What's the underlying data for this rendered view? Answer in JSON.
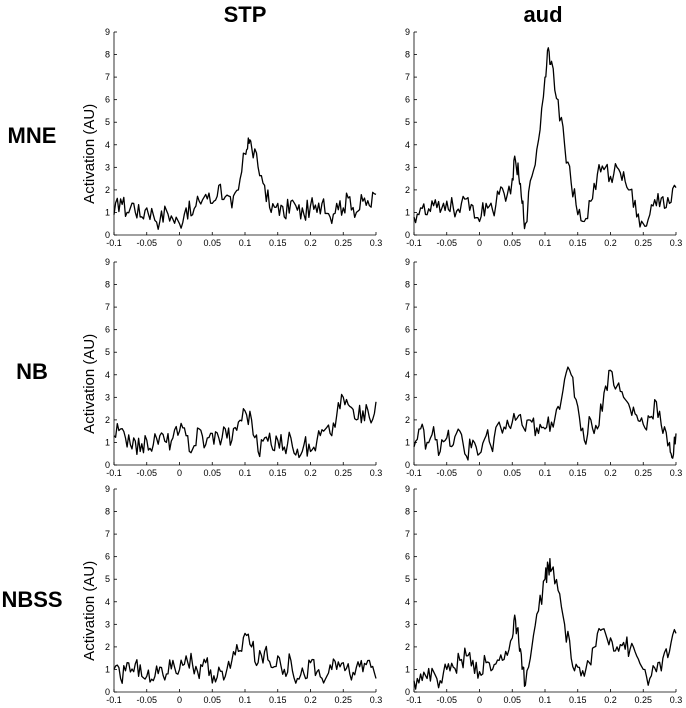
{
  "columns": [
    "STP",
    "aud"
  ],
  "rows": [
    "MNE",
    "NB",
    "NBSS"
  ],
  "chart_data": [
    {
      "type": "line",
      "row": "MNE",
      "column": "STP",
      "ylabel": "Activation (AU)",
      "xlim": [
        -0.1,
        0.3
      ],
      "ylim": [
        0,
        9
      ],
      "x": [
        -0.1,
        -0.09,
        -0.08,
        -0.07,
        -0.06,
        -0.05,
        -0.04,
        -0.03,
        -0.02,
        -0.01,
        0,
        0.01,
        0.02,
        0.03,
        0.04,
        0.05,
        0.06,
        0.07,
        0.08,
        0.09,
        0.1,
        0.105,
        0.11,
        0.12,
        0.13,
        0.14,
        0.15,
        0.16,
        0.17,
        0.18,
        0.19,
        0.2,
        0.21,
        0.22,
        0.23,
        0.24,
        0.25,
        0.26,
        0.27,
        0.28,
        0.29,
        0.3
      ],
      "y": [
        0.9,
        1.6,
        1.0,
        1.4,
        0.8,
        1.2,
        0.9,
        0.6,
        1.1,
        0.7,
        0.5,
        1.2,
        0.9,
        1.5,
        1.8,
        1.4,
        2.2,
        1.7,
        1.2,
        2.0,
        3.6,
        4.3,
        3.9,
        3.0,
        2.2,
        1.0,
        1.4,
        0.8,
        1.5,
        1.1,
        0.9,
        1.3,
        1.0,
        1.6,
        0.8,
        1.4,
        1.2,
        1.7,
        1.0,
        1.5,
        1.3,
        1.8
      ]
    },
    {
      "type": "line",
      "row": "MNE",
      "column": "aud",
      "ylabel": "",
      "xlim": [
        -0.1,
        0.3
      ],
      "ylim": [
        0,
        9
      ],
      "x": [
        -0.1,
        -0.09,
        -0.08,
        -0.07,
        -0.06,
        -0.05,
        -0.04,
        -0.03,
        -0.02,
        -0.01,
        0,
        0.01,
        0.02,
        0.03,
        0.04,
        0.05,
        0.055,
        0.06,
        0.065,
        0.07,
        0.08,
        0.09,
        0.1,
        0.105,
        0.11,
        0.12,
        0.13,
        0.14,
        0.15,
        0.16,
        0.17,
        0.18,
        0.19,
        0.2,
        0.21,
        0.22,
        0.23,
        0.24,
        0.25,
        0.26,
        0.27,
        0.28,
        0.29,
        0.3
      ],
      "y": [
        0.8,
        1.2,
        0.9,
        1.3,
        1.0,
        1.5,
        1.2,
        1.0,
        1.6,
        1.3,
        0.6,
        1.4,
        1.1,
        1.8,
        1.5,
        2.5,
        3.3,
        2.6,
        1.4,
        0.5,
        2.6,
        4.2,
        7.0,
        8.3,
        7.7,
        6.0,
        4.0,
        2.3,
        0.9,
        0.6,
        1.5,
        2.7,
        2.9,
        2.6,
        3.0,
        2.8,
        2.0,
        0.8,
        0.5,
        0.9,
        1.3,
        1.7,
        1.4,
        2.1
      ]
    },
    {
      "type": "line",
      "row": "NB",
      "column": "STP",
      "ylabel": "Activation (AU)",
      "xlim": [
        -0.1,
        0.3
      ],
      "ylim": [
        0,
        9
      ],
      "x": [
        -0.1,
        -0.09,
        -0.08,
        -0.07,
        -0.06,
        -0.05,
        -0.04,
        -0.03,
        -0.02,
        -0.01,
        0,
        0.01,
        0.02,
        0.03,
        0.04,
        0.05,
        0.06,
        0.07,
        0.08,
        0.09,
        0.1,
        0.11,
        0.12,
        0.13,
        0.14,
        0.15,
        0.16,
        0.17,
        0.18,
        0.19,
        0.2,
        0.21,
        0.22,
        0.23,
        0.24,
        0.25,
        0.26,
        0.27,
        0.28,
        0.29,
        0.3
      ],
      "y": [
        1.3,
        1.6,
        0.8,
        1.2,
        0.6,
        1.1,
        0.9,
        1.3,
        1.0,
        1.2,
        1.5,
        1.3,
        0.7,
        1.6,
        0.9,
        1.4,
        1.2,
        1.6,
        1.1,
        1.9,
        2.4,
        2.0,
        0.6,
        1.2,
        0.9,
        1.1,
        0.8,
        1.2,
        0.7,
        0.9,
        0.6,
        1.1,
        1.5,
        1.4,
        2.2,
        3.0,
        2.6,
        2.0,
        2.4,
        2.1,
        2.8
      ]
    },
    {
      "type": "line",
      "row": "NB",
      "column": "aud",
      "ylabel": "",
      "xlim": [
        -0.1,
        0.3
      ],
      "ylim": [
        0,
        9
      ],
      "x": [
        -0.1,
        -0.09,
        -0.08,
        -0.07,
        -0.06,
        -0.05,
        -0.04,
        -0.03,
        -0.02,
        -0.01,
        0,
        0.01,
        0.02,
        0.03,
        0.04,
        0.05,
        0.06,
        0.07,
        0.08,
        0.09,
        0.1,
        0.11,
        0.12,
        0.13,
        0.14,
        0.15,
        0.16,
        0.17,
        0.18,
        0.19,
        0.2,
        0.21,
        0.22,
        0.23,
        0.24,
        0.25,
        0.26,
        0.27,
        0.28,
        0.29,
        0.295,
        0.3
      ],
      "y": [
        0.8,
        1.6,
        1.0,
        1.7,
        0.6,
        1.2,
        0.9,
        1.5,
        0.4,
        1.1,
        0.5,
        1.3,
        0.6,
        1.9,
        1.6,
        1.9,
        2.2,
        1.5,
        1.9,
        1.4,
        1.6,
        1.9,
        2.6,
        3.8,
        4.0,
        2.6,
        1.1,
        2.0,
        1.6,
        3.2,
        4.2,
        3.5,
        3.0,
        2.5,
        2.2,
        1.8,
        2.1,
        2.8,
        1.4,
        1.0,
        0.3,
        1.4
      ]
    },
    {
      "type": "line",
      "row": "NBSS",
      "column": "STP",
      "ylabel": "Activation (AU)",
      "xlim": [
        -0.1,
        0.3
      ],
      "ylim": [
        0,
        9
      ],
      "x": [
        -0.1,
        -0.09,
        -0.08,
        -0.07,
        -0.06,
        -0.05,
        -0.04,
        -0.03,
        -0.02,
        -0.01,
        0,
        0.01,
        0.02,
        0.03,
        0.04,
        0.05,
        0.06,
        0.07,
        0.08,
        0.09,
        0.1,
        0.11,
        0.12,
        0.13,
        0.14,
        0.15,
        0.16,
        0.17,
        0.18,
        0.19,
        0.2,
        0.21,
        0.22,
        0.23,
        0.24,
        0.25,
        0.26,
        0.27,
        0.28,
        0.29,
        0.3
      ],
      "y": [
        1.0,
        0.6,
        1.3,
        0.9,
        1.2,
        0.7,
        0.5,
        1.1,
        0.8,
        1.4,
        1.0,
        1.6,
        1.2,
        0.6,
        1.3,
        0.4,
        1.1,
        0.7,
        1.4,
        1.8,
        2.6,
        2.0,
        1.3,
        1.8,
        1.1,
        1.6,
        1.0,
        1.4,
        0.6,
        0.8,
        1.3,
        0.9,
        0.4,
        1.2,
        1.0,
        1.3,
        0.8,
        1.1,
        0.9,
        1.4,
        0.6
      ]
    },
    {
      "type": "line",
      "row": "NBSS",
      "column": "aud",
      "ylabel": "",
      "xlim": [
        -0.1,
        0.3
      ],
      "ylim": [
        0,
        9
      ],
      "x": [
        -0.1,
        -0.09,
        -0.08,
        -0.07,
        -0.06,
        -0.05,
        -0.04,
        -0.03,
        -0.02,
        -0.01,
        0,
        0.01,
        0.02,
        0.03,
        0.04,
        0.05,
        0.055,
        0.06,
        0.065,
        0.07,
        0.08,
        0.09,
        0.1,
        0.105,
        0.11,
        0.12,
        0.13,
        0.14,
        0.15,
        0.16,
        0.17,
        0.18,
        0.19,
        0.2,
        0.21,
        0.22,
        0.23,
        0.24,
        0.25,
        0.26,
        0.27,
        0.28,
        0.29,
        0.3
      ],
      "y": [
        0.5,
        0.8,
        0.6,
        0.9,
        0.5,
        1.0,
        1.1,
        1.4,
        1.6,
        1.4,
        0.9,
        1.3,
        1.0,
        1.4,
        1.8,
        2.4,
        3.2,
        2.2,
        1.0,
        0.3,
        2.0,
        3.6,
        5.0,
        5.6,
        5.4,
        4.5,
        3.0,
        1.5,
        1.1,
        0.7,
        1.2,
        2.6,
        2.8,
        2.4,
        2.0,
        2.2,
        1.9,
        1.6,
        1.0,
        0.6,
        0.9,
        1.5,
        1.8,
        2.6
      ]
    }
  ]
}
